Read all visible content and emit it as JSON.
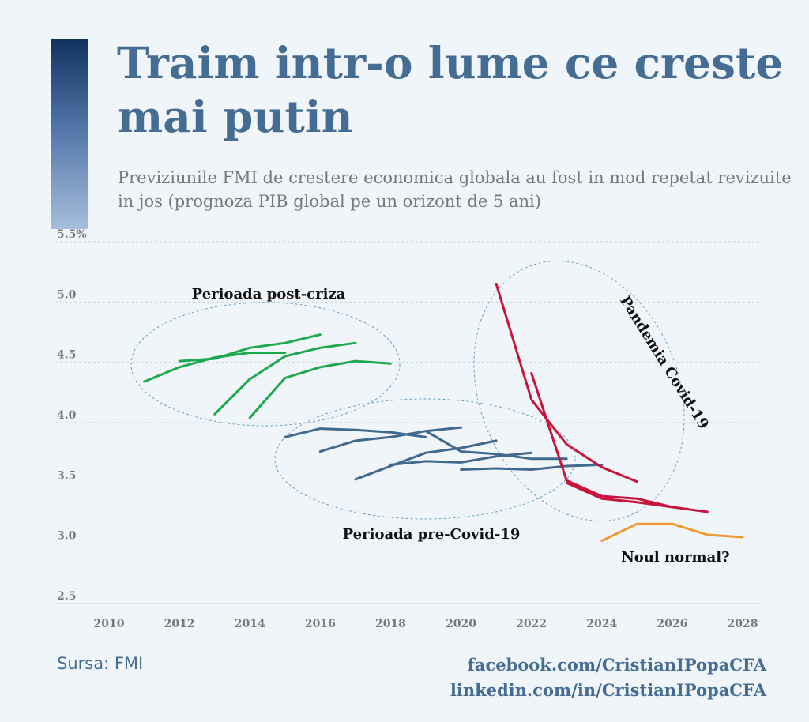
{
  "title": "Traim intr-o lume ce creste mai putin",
  "subtitle": "Previziunile FMI de crestere economica globala au fost in mod repetat revizuite in jos (prognoza PIB global pe un orizont de 5 ani)",
  "footer": {
    "source": "Sursa: FMI",
    "facebook": "facebook.com/CristianIPopaCFA",
    "linkedin": "linkedin.com/in/CristianIPopaCFA"
  },
  "colors": {
    "post_criza": "#1fa94f",
    "pre_covid": "#41688f",
    "covid": "#c8143c",
    "noul_normal": "#ee9b32",
    "title": "#456c93"
  },
  "chart_data": {
    "type": "line",
    "xlim": [
      2010,
      2028
    ],
    "ylim": [
      2.5,
      5.5
    ],
    "x_ticks": [
      "2010",
      "2012",
      "2014",
      "2016",
      "2018",
      "2020",
      "2022",
      "2024",
      "2026",
      "2028"
    ],
    "y_ticks": [
      {
        "value": 2.5,
        "label": "2.5"
      },
      {
        "value": 3.0,
        "label": "3.0"
      },
      {
        "value": 3.5,
        "label": "3.5"
      },
      {
        "value": 4.0,
        "label": "4.0"
      },
      {
        "value": 4.5,
        "label": "4.5"
      },
      {
        "value": 5.0,
        "label": "5.0"
      },
      {
        "value": 5.5,
        "label": "5.5%"
      }
    ],
    "grid": true,
    "annotations": [
      {
        "text": "Perioada post-criza",
        "group": "post_criza"
      },
      {
        "text": "Perioada pre-Covid-19",
        "group": "pre_covid"
      },
      {
        "text": "Pandemia Covid-19",
        "group": "covid"
      },
      {
        "text": "Noul normal?",
        "group": "noul_normal"
      }
    ],
    "series": [
      {
        "group": "post_criza",
        "x": [
          2011,
          2012,
          2013,
          2014,
          2015
        ],
        "y": [
          4.34,
          4.46,
          4.54,
          4.58,
          4.58
        ]
      },
      {
        "group": "post_criza",
        "x": [
          2012,
          2013,
          2014,
          2015,
          2016
        ],
        "y": [
          4.51,
          4.53,
          4.62,
          4.66,
          4.73
        ]
      },
      {
        "group": "post_criza",
        "x": [
          2013,
          2014,
          2015,
          2016,
          2017
        ],
        "y": [
          4.07,
          4.36,
          4.55,
          4.62,
          4.66
        ]
      },
      {
        "group": "post_criza",
        "x": [
          2014,
          2015,
          2016,
          2017,
          2018
        ],
        "y": [
          4.04,
          4.37,
          4.46,
          4.51,
          4.49
        ]
      },
      {
        "group": "pre_covid",
        "x": [
          2015,
          2016,
          2017,
          2018,
          2019
        ],
        "y": [
          3.88,
          3.95,
          3.94,
          3.92,
          3.88
        ]
      },
      {
        "group": "pre_covid",
        "x": [
          2016,
          2017,
          2018,
          2019,
          2020
        ],
        "y": [
          3.76,
          3.85,
          3.88,
          3.93,
          3.96
        ]
      },
      {
        "group": "pre_covid",
        "x": [
          2017,
          2018,
          2019,
          2020,
          2021
        ],
        "y": [
          3.53,
          3.64,
          3.75,
          3.79,
          3.85
        ]
      },
      {
        "group": "pre_covid",
        "x": [
          2018,
          2019,
          2020,
          2021,
          2022
        ],
        "y": [
          3.65,
          3.68,
          3.67,
          3.72,
          3.75
        ]
      },
      {
        "group": "pre_covid",
        "x": [
          2019,
          2020,
          2021,
          2022,
          2023
        ],
        "y": [
          3.93,
          3.76,
          3.74,
          3.7,
          3.7
        ]
      },
      {
        "group": "pre_covid",
        "x": [
          2020,
          2021,
          2022,
          2023,
          2024
        ],
        "y": [
          3.61,
          3.62,
          3.61,
          3.64,
          3.65
        ]
      },
      {
        "group": "covid",
        "x": [
          2021,
          2022,
          2023,
          2024,
          2025
        ],
        "y": [
          5.15,
          4.19,
          3.82,
          3.63,
          3.51
        ]
      },
      {
        "group": "covid",
        "x": [
          2022,
          2023,
          2024,
          2025,
          2026
        ],
        "y": [
          4.41,
          3.52,
          3.39,
          3.37,
          3.3
        ]
      },
      {
        "group": "covid",
        "x": [
          2023,
          2024,
          2025,
          2026,
          2027
        ],
        "y": [
          3.5,
          3.37,
          3.34,
          3.3,
          3.26
        ]
      },
      {
        "group": "noul_normal",
        "x": [
          2024,
          2025,
          2026,
          2027,
          2028
        ],
        "y": [
          3.02,
          3.16,
          3.16,
          3.07,
          3.05
        ]
      }
    ]
  }
}
